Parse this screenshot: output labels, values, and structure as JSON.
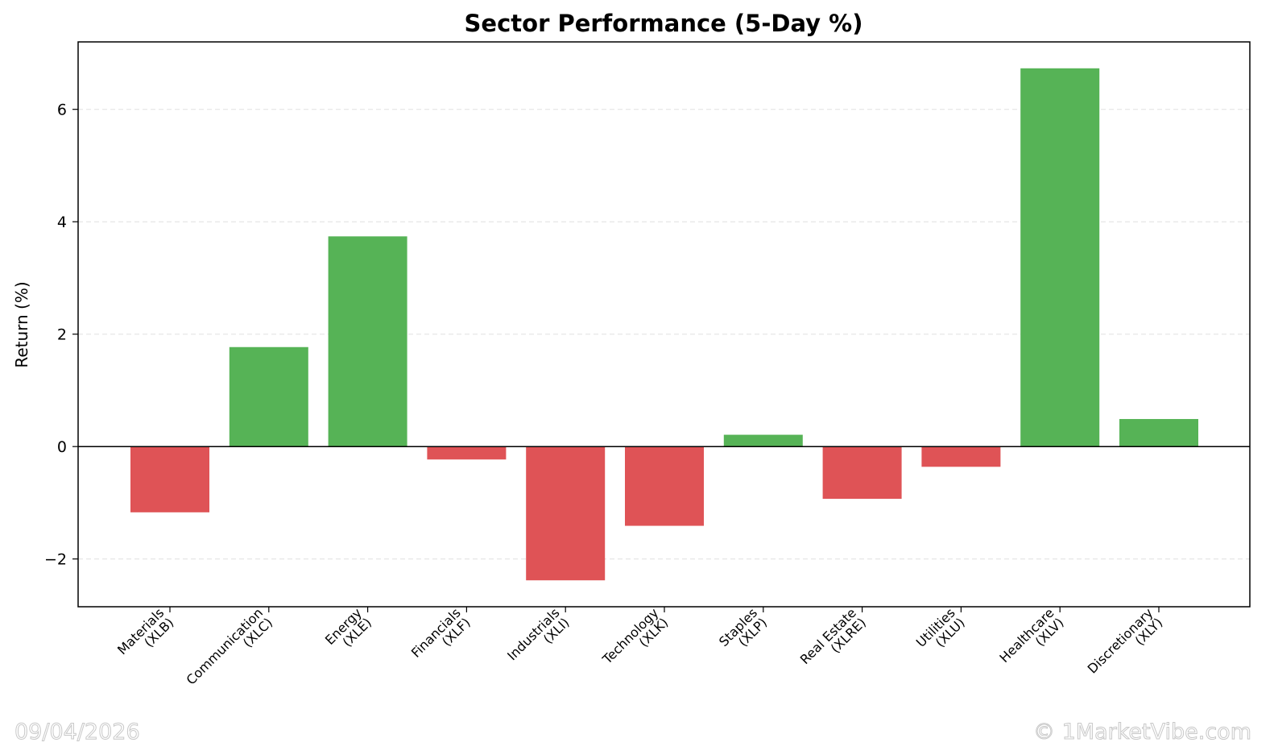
{
  "chart_data": {
    "type": "bar",
    "title": "Sector Performance (5-Day %)",
    "xlabel": "",
    "ylabel": "Return (%)",
    "categories": [
      "Materials\n(XLB)",
      "Communication\n(XLC)",
      "Energy\n(XLE)",
      "Financials\n(XLF)",
      "Industrials\n(XLI)",
      "Technology\n(XLK)",
      "Staples\n(XLP)",
      "Real Estate\n(XLRE)",
      "Utilities\n(XLU)",
      "Healthcare\n(XLV)",
      "Discretionary\n(XLY)"
    ],
    "values": [
      -1.17,
      1.77,
      3.74,
      -0.23,
      -2.38,
      -1.41,
      0.21,
      -0.93,
      -0.36,
      6.73,
      0.49
    ],
    "ylim": [
      -2.85,
      7.2
    ],
    "yticks": [
      -2,
      0,
      2,
      4,
      6
    ],
    "ytick_labels": [
      "−2",
      "0",
      "2",
      "4",
      "6"
    ],
    "grid": "y-dashed",
    "legend": "none",
    "colors": {
      "positive": "#56b356",
      "negative": "#df5356",
      "zero_line": "#000000",
      "grid": "#e0e0e0"
    }
  },
  "watermark": {
    "date": "09/04/2026",
    "copyright": "© 1MarketVibe.com"
  }
}
